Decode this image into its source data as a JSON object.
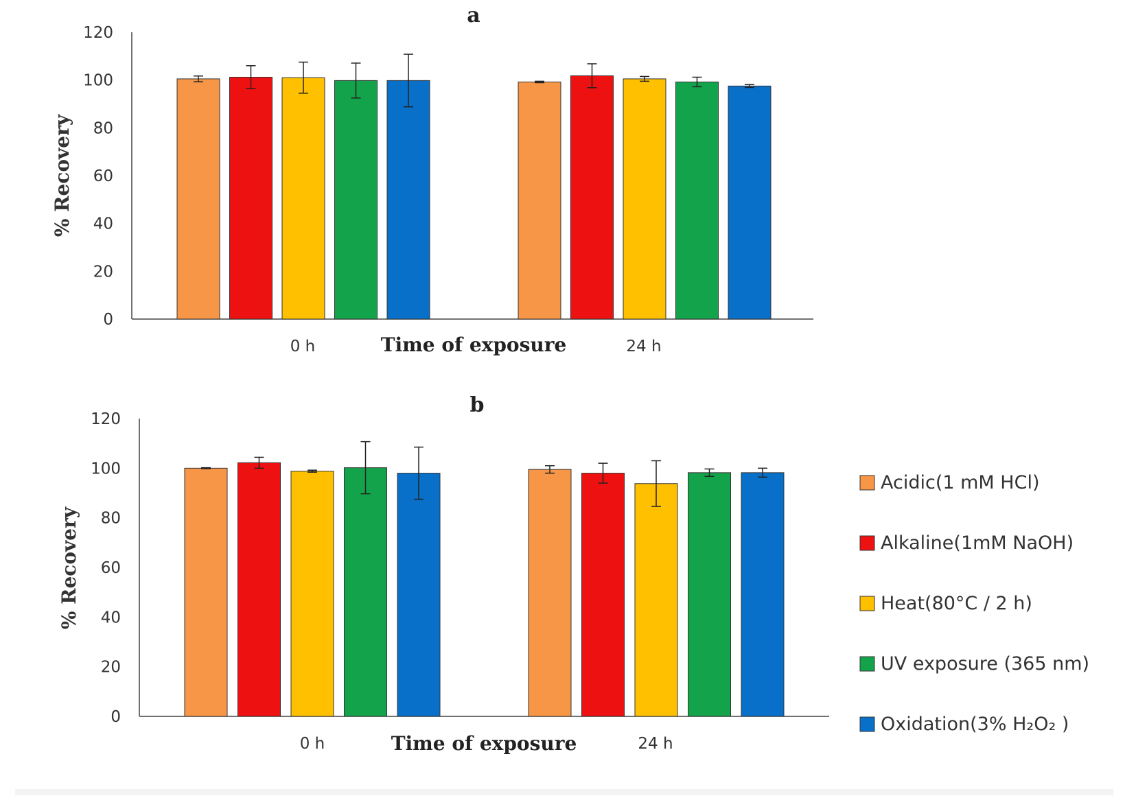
{
  "chart_data": [
    {
      "type": "bar",
      "title": "a",
      "xlabel": "Time of exposure",
      "ylabel": "% Recovery",
      "categories": [
        "0 h",
        "24 h"
      ],
      "ylim": [
        0,
        120
      ],
      "yticks": [
        0,
        20,
        40,
        60,
        80,
        100,
        120
      ],
      "grid": false,
      "series": [
        {
          "name": "Acidic(1 mM HCl)",
          "color": "#F79646",
          "values": [
            100.5,
            99.2
          ],
          "errors": [
            1.2,
            0.3
          ]
        },
        {
          "name": "Alkaline(1mM NaOH)",
          "color": "#EE1111",
          "values": [
            101.2,
            101.8
          ],
          "errors": [
            4.8,
            5.0
          ]
        },
        {
          "name": "Heat(80°C / 2 h)",
          "color": "#FFC000",
          "values": [
            101.0,
            100.5
          ],
          "errors": [
            6.5,
            1.0
          ]
        },
        {
          "name": "UV exposure (365 nm)",
          "color": "#13A34A",
          "values": [
            99.8,
            99.2
          ],
          "errors": [
            7.3,
            2.0
          ]
        },
        {
          "name": "Oxidation(3% H₂O₂ )",
          "color": "#0870C8",
          "values": [
            99.8,
            97.5
          ],
          "errors": [
            11.0,
            0.6
          ]
        }
      ]
    },
    {
      "type": "bar",
      "title": "b",
      "xlabel": "Time of exposure",
      "ylabel": "% Recovery",
      "categories": [
        "0 h",
        "24 h"
      ],
      "ylim": [
        0,
        120
      ],
      "yticks": [
        0,
        20,
        40,
        60,
        80,
        100,
        120
      ],
      "grid": false,
      "legend_position": "right",
      "series": [
        {
          "name": "Acidic(1 mM HCl)",
          "color": "#F79646",
          "values": [
            100.0,
            99.5
          ],
          "errors": [
            0.2,
            1.5
          ]
        },
        {
          "name": "Alkaline(1mM NaOH)",
          "color": "#EE1111",
          "values": [
            102.2,
            98.0
          ],
          "errors": [
            2.2,
            4.0
          ]
        },
        {
          "name": "Heat(80°C / 2 h)",
          "color": "#FFC000",
          "values": [
            98.8,
            93.8
          ],
          "errors": [
            0.4,
            9.2
          ]
        },
        {
          "name": "UV exposure (365 nm)",
          "color": "#13A34A",
          "values": [
            100.2,
            98.2
          ],
          "errors": [
            10.5,
            1.5
          ]
        },
        {
          "name": "Oxidation(3% H₂O₂ )",
          "color": "#0870C8",
          "values": [
            98.0,
            98.2
          ],
          "errors": [
            10.5,
            1.8
          ]
        }
      ]
    }
  ]
}
